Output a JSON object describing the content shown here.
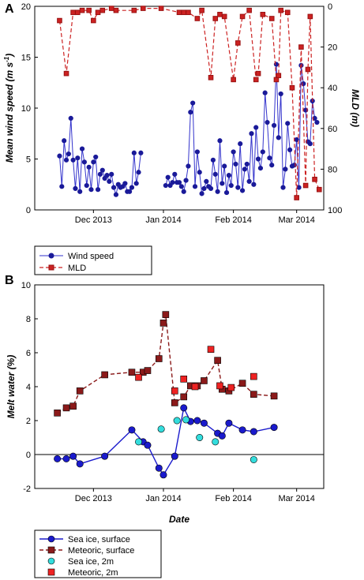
{
  "panels": {
    "a": "A",
    "b": "B"
  },
  "chart_data": [
    {
      "type": "line",
      "ylabel_left": "Mean wind speed (m s",
      "ylabel_left_sup": "-1",
      "ylabel_left_close": ")",
      "ylabel_right": "MLD (m)",
      "ylim_left": [
        0,
        20
      ],
      "ylim_right": [
        100,
        0
      ],
      "yticks_left": [
        "0",
        "5",
        "10",
        "15",
        "20"
      ],
      "yticks_right": [
        "100",
        "80",
        "60",
        "40",
        "20",
        "0"
      ],
      "xtick_labels": [
        "Dec 2013",
        "Jan 2014",
        "Feb 2014",
        "Mar 2014"
      ],
      "xtick_days": [
        26,
        57,
        88,
        116
      ],
      "xlim_days": [
        0,
        128
      ],
      "x_units": "day of season (Nov 5 2013 = 0)",
      "legend_position": "bottom-left",
      "series": [
        {
          "name": "Wind speed",
          "axis": "left",
          "color": "#3333cc",
          "marker": "circle",
          "line": "solid",
          "segments": [
            {
              "x": [
                11,
                12,
                13,
                14,
                15,
                16,
                17,
                18,
                19,
                20,
                21,
                22,
                23,
                24,
                25,
                26,
                27,
                28,
                29,
                30,
                31,
                32,
                33,
                34,
                35,
                36,
                37,
                38,
                39,
                40,
                41,
                42,
                43,
                44,
                45,
                46,
                47
              ],
              "y": [
                5.3,
                2.3,
                6.8,
                4.9,
                5.5,
                9.0,
                4.9,
                2.1,
                5.1,
                1.8,
                6.0,
                4.7,
                2.4,
                4.2,
                2.0,
                4.7,
                5.2,
                2.0,
                3.5,
                3.9,
                3.1,
                3.4,
                2.8,
                3.5,
                2.2,
                1.5,
                2.5,
                2.2,
                2.3,
                2.6,
                1.8,
                1.8,
                2.2,
                5.6,
                2.6,
                3.7,
                5.6
              ]
            },
            {
              "x": [
                58,
                59,
                60,
                61,
                62,
                63,
                64,
                65,
                66,
                67,
                68,
                69,
                70,
                71,
                72,
                73,
                74,
                75,
                76,
                77,
                78,
                79,
                80,
                81,
                82,
                83,
                84,
                85,
                86,
                87,
                88,
                89,
                90,
                91,
                92,
                93,
                94,
                95,
                96,
                97,
                98,
                99,
                100,
                101,
                102,
                103,
                104,
                105,
                106,
                107,
                108,
                109,
                110,
                111,
                112,
                113,
                114,
                115,
                116,
                117,
                118,
                119,
                120,
                121,
                122,
                123,
                124,
                125
              ],
              "y": [
                2.4,
                3.2,
                2.4,
                2.7,
                3.5,
                2.7,
                2.7,
                2.3,
                1.8,
                2.9,
                4.3,
                9.6,
                10.5,
                2.3,
                5.7,
                3.7,
                1.6,
                2.1,
                2.8,
                2.3,
                2.1,
                4.9,
                3.5,
                1.8,
                6.8,
                2.6,
                4.3,
                1.7,
                3.4,
                2.4,
                5.7,
                4.5,
                2.2,
                6.5,
                1.9,
                4.0,
                4.5,
                2.8,
                7.5,
                2.5,
                8.1,
                5.0,
                4.1,
                5.7,
                11.5,
                8.6,
                5.1,
                4.4,
                8.3,
                14.3,
                7.1,
                11.4,
                2.2,
                4.0,
                8.5,
                5.9,
                4.3,
                4.4,
                6.9,
                2.2,
                14.2,
                12.4,
                9.8,
                6.7,
                6.5,
                10.7,
                9.0,
                8.6
              ]
            }
          ]
        },
        {
          "name": "MLD",
          "axis": "right",
          "color": "#cc2222",
          "marker": "square",
          "line": "dashed",
          "x": [
            11,
            14,
            17,
            19,
            21,
            24,
            26,
            28,
            30,
            34,
            36,
            44,
            48,
            56,
            64,
            66,
            68,
            72,
            74,
            78,
            80,
            82,
            84,
            88,
            90,
            92,
            95,
            98,
            99,
            101,
            105,
            107,
            108,
            109,
            112,
            114,
            116,
            118,
            120,
            121,
            122,
            124,
            126
          ],
          "y": [
            7,
            33,
            3,
            3,
            2,
            2,
            7,
            3,
            2,
            1,
            2,
            2,
            1,
            1,
            3,
            3,
            3,
            6,
            2,
            35,
            6,
            4,
            5,
            36,
            18,
            5,
            2,
            36,
            33,
            4,
            6,
            36,
            34,
            2,
            3,
            40,
            94,
            20,
            88,
            31,
            5,
            85,
            90
          ]
        }
      ]
    },
    {
      "type": "line",
      "ylabel": "Melt water (%)",
      "xlabel": "Date",
      "ylim": [
        -2,
        10
      ],
      "yticks": [
        "-2",
        "0",
        "2",
        "4",
        "6",
        "8",
        "10"
      ],
      "xtick_labels": [
        "Dec 2013",
        "Jan 2014",
        "Feb 2014",
        "Mar 2014"
      ],
      "xtick_days": [
        26,
        57,
        88,
        116
      ],
      "xlim_days": [
        0,
        128
      ],
      "legend_position": "bottom-left",
      "series": [
        {
          "name": "Sea ice, surface",
          "color": "#1a1acc",
          "fill": "#1a1acc",
          "marker": "circle",
          "line": "solid",
          "x": [
            10,
            14,
            17,
            20,
            31,
            43,
            48,
            50,
            55,
            57,
            62,
            66,
            69,
            72,
            75,
            81,
            83,
            86,
            92,
            97,
            106
          ],
          "y": [
            -0.25,
            -0.25,
            -0.1,
            -0.55,
            -0.1,
            1.45,
            0.75,
            0.55,
            -0.8,
            -1.2,
            -0.1,
            2.75,
            1.95,
            2.0,
            1.85,
            1.25,
            1.1,
            1.85,
            1.45,
            1.35,
            1.6
          ]
        },
        {
          "name": "Meteoric, surface",
          "color": "#8b1a1a",
          "fill": "#8b1a1a",
          "marker": "square",
          "line": "dashed",
          "x": [
            10,
            14,
            17,
            20,
            31,
            43,
            48,
            50,
            55,
            57,
            58,
            62,
            66,
            69,
            72,
            75,
            81,
            83,
            86,
            92,
            97,
            106
          ],
          "y": [
            2.45,
            2.75,
            2.85,
            3.75,
            4.7,
            4.85,
            4.85,
            4.95,
            5.65,
            7.75,
            8.25,
            3.05,
            3.4,
            4.05,
            4.05,
            4.35,
            5.55,
            3.85,
            3.75,
            4.2,
            3.55,
            3.45
          ]
        },
        {
          "name": "Sea ice, 2m",
          "color": "#000000",
          "fill": "#33dddd",
          "marker": "circle",
          "line": "none",
          "x": [
            46,
            56,
            63,
            67,
            73,
            80,
            97
          ],
          "y": [
            0.75,
            1.5,
            2.0,
            2.05,
            1.0,
            0.75,
            -0.3
          ]
        },
        {
          "name": "Meteoric, 2m",
          "color": "#000000",
          "fill": "#ee2222",
          "marker": "square",
          "line": "none",
          "x": [
            46,
            62,
            66,
            71,
            78,
            82,
            87,
            97
          ],
          "y": [
            4.55,
            3.75,
            4.45,
            4.0,
            6.2,
            4.05,
            3.95,
            4.6
          ]
        }
      ]
    }
  ]
}
